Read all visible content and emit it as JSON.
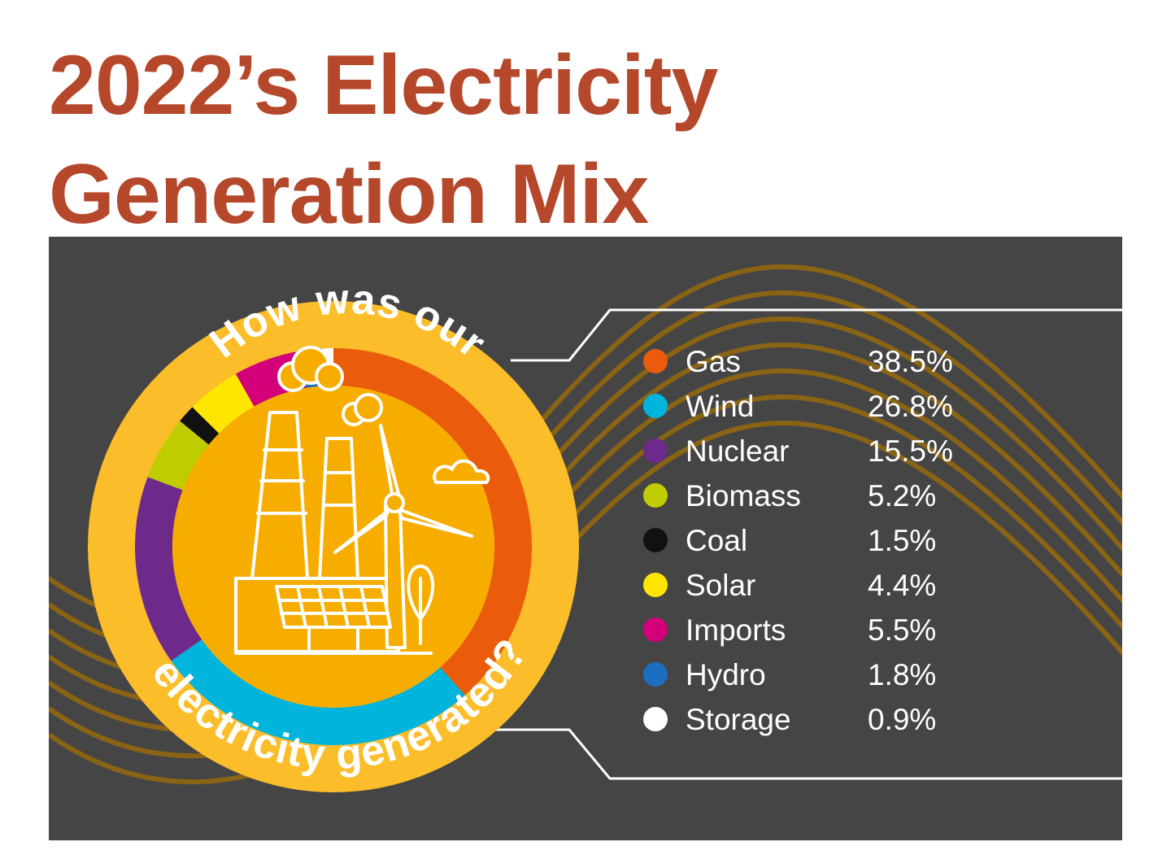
{
  "title": {
    "line1": "2022’s Electricity",
    "line2": "Generation Mix",
    "color": "#b5482b"
  },
  "badge": {
    "top_text": "How was our",
    "bottom_text": "electricity generated?"
  },
  "colors": {
    "panel_background": "#454545",
    "wave": "#8a6414",
    "ring": "#fbbd2a",
    "inner_fill": "#f7ad00",
    "line_art": "#ffffff"
  },
  "icons": [
    "factory-chimney-icon",
    "wind-turbine-icon",
    "solar-panel-icon",
    "tree-icon",
    "cloud-icon",
    "smoke-icon"
  ],
  "chart_data": {
    "type": "pie",
    "variant": "donut",
    "title": "",
    "unit": "%",
    "categories": [
      "Gas",
      "Wind",
      "Nuclear",
      "Biomass",
      "Coal",
      "Solar",
      "Imports",
      "Hydro",
      "Storage"
    ],
    "values": [
      38.5,
      26.8,
      15.5,
      5.2,
      1.5,
      4.4,
      5.5,
      1.8,
      0.9
    ],
    "labels": [
      "38.5%",
      "26.8%",
      "15.5%",
      "5.2%",
      "1.5%",
      "4.4%",
      "5.5%",
      "1.8%",
      "0.9%"
    ],
    "colors": [
      "#ea5c0b",
      "#00b4dc",
      "#6e2a8a",
      "#bfcc00",
      "#111111",
      "#ffe600",
      "#d4007a",
      "#1c6fc0",
      "#ffffff"
    ],
    "legend_position": "right",
    "grid": false
  }
}
